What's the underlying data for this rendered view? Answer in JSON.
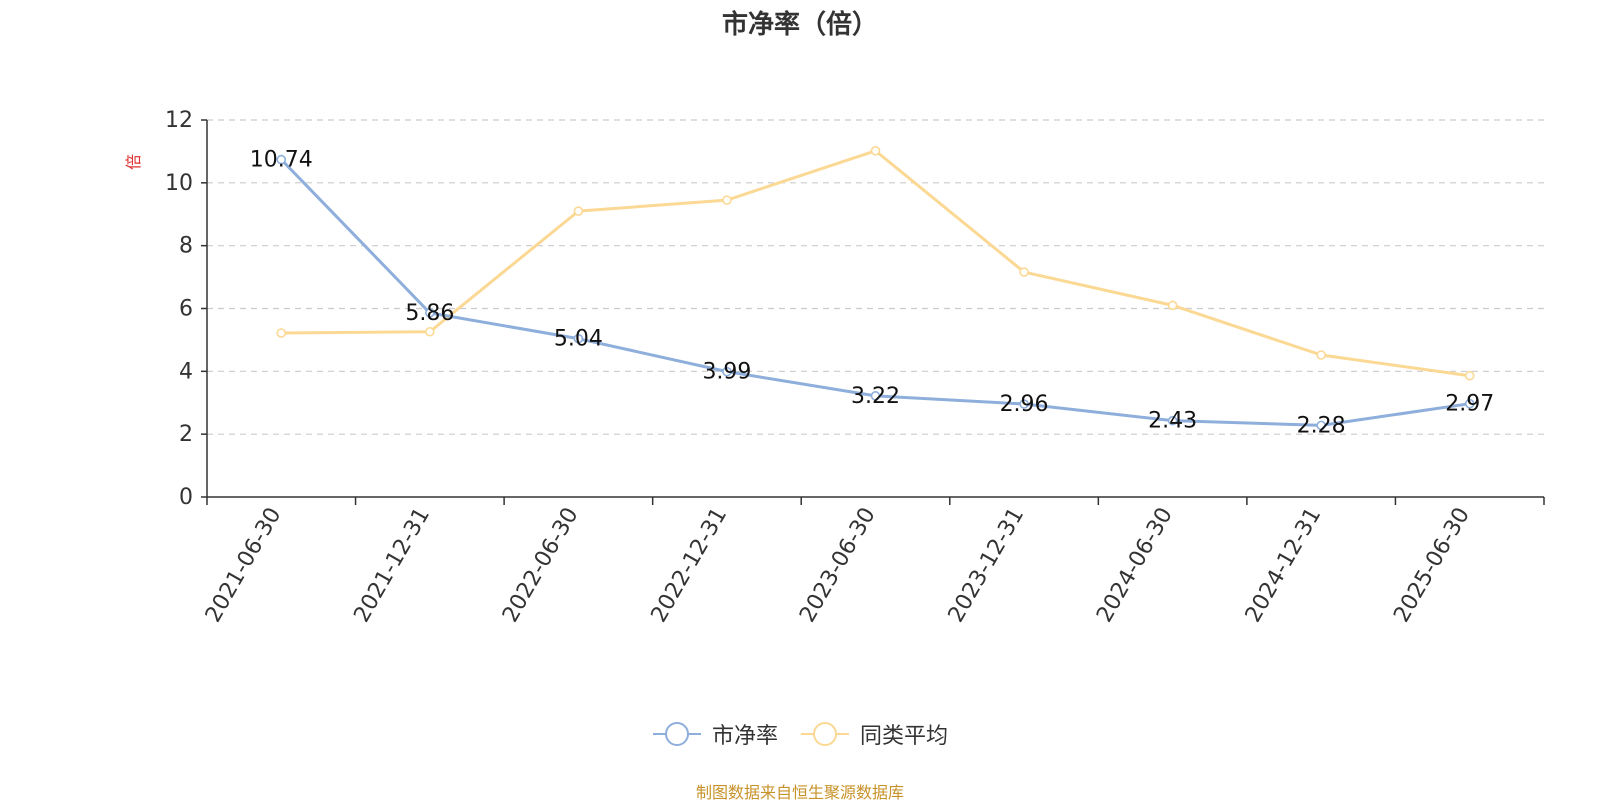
{
  "chart_data": {
    "type": "line",
    "title": "市净率（倍）",
    "ylabel": "倍",
    "xlabel": "",
    "categories": [
      "2021-06-30",
      "2021-12-31",
      "2022-06-30",
      "2022-12-31",
      "2023-06-30",
      "2023-12-31",
      "2024-06-30",
      "2024-12-31",
      "2025-06-30"
    ],
    "ylim": [
      0,
      12
    ],
    "yticks": [
      0,
      2,
      4,
      6,
      8,
      10,
      12
    ],
    "grid": true,
    "legend_position": "bottom",
    "series": [
      {
        "name": "市净率",
        "color": "#8eaedc",
        "show_labels": true,
        "values": [
          10.74,
          5.86,
          5.04,
          3.99,
          3.22,
          2.96,
          2.43,
          2.28,
          2.97
        ]
      },
      {
        "name": "同类平均",
        "color": "#fbd893",
        "show_labels": false,
        "values": [
          5.22,
          5.26,
          9.1,
          9.45,
          11.02,
          7.16,
          6.1,
          4.52,
          3.86
        ]
      }
    ]
  },
  "source_note": "制图数据来自恒生聚源数据库",
  "colors": {
    "axis": "#333333",
    "grid": "#cccccc",
    "ylabel": "#e03030",
    "source": "#c8922a"
  }
}
